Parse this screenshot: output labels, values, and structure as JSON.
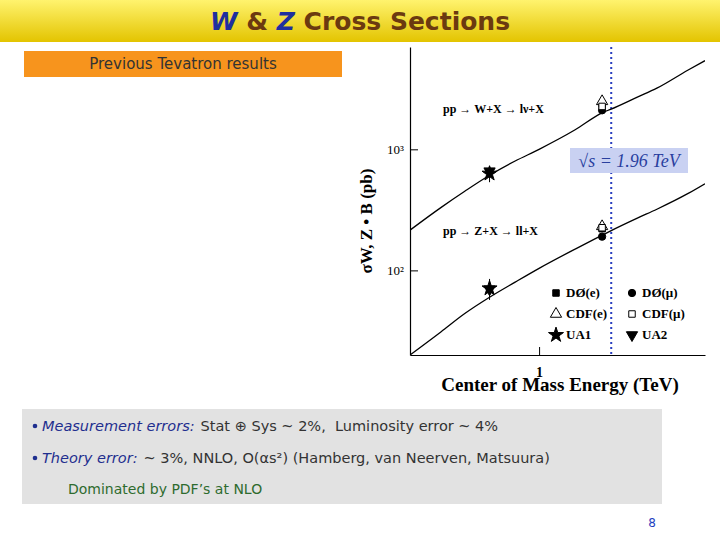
{
  "slide": {
    "title": [
      "W",
      " & ",
      "Z",
      " Cross Sections"
    ],
    "box": "Previous Tevatron results",
    "bullets": [
      {
        "label": "Measurement errors:",
        "text": "Stat ⊕ Sys ~ 2%,  Luminosity error ~ 4%"
      },
      {
        "label": "Theory error:",
        "text": "~ 3%, NNLO, O(αs²) (Hamberg, van Neerven, Matsuura)"
      }
    ],
    "note": "Dominated by PDF’s at NLO",
    "page": 8
  },
  "chart_data": {
    "type": "scatter",
    "xlabel": "Center of Mass Energy (TeV)",
    "ylabel": "σW, Z • B (pb)",
    "log": true,
    "grid": false,
    "legend": "lower right",
    "xlim": [
      0.3,
      4.7
    ],
    "ylim": [
      20,
      7000
    ],
    "xticks": [
      1
    ],
    "yticks": [
      {
        "value": 100,
        "label": "10²"
      },
      {
        "value": 1000,
        "label": "10³"
      }
    ],
    "annotations": [
      {
        "text": "√s = 1.96 TeV",
        "x": 1.96
      }
    ],
    "series": [
      {
        "name": "DØ(e)",
        "color": "#000000",
        "marker": "square",
        "x": [
          1.8,
          1.8
        ],
        "values": [
          2360,
          221
        ],
        "errors": [
          110,
          11
        ]
      },
      {
        "name": "DØ(μ)",
        "color": "#000000",
        "marker": "circle",
        "x": [
          1.8,
          1.8
        ],
        "values": [
          2100,
          190
        ],
        "errors": [
          100,
          10
        ]
      },
      {
        "name": "CDF(e)",
        "color": "#000000",
        "marker": "triangle-open",
        "x": [
          1.8,
          1.8
        ],
        "values": [
          2490,
          231
        ],
        "errors": [
          120,
          12
        ]
      },
      {
        "name": "CDF(μ)",
        "color": "#000000",
        "marker": "square-open",
        "x": [
          1.8,
          1.8
        ],
        "values": [
          2260,
          225
        ],
        "errors": [
          110,
          12
        ]
      },
      {
        "name": "UA1",
        "color": "#000000",
        "marker": "star",
        "x": [
          0.63,
          0.63
        ],
        "values": [
          630,
          71
        ],
        "errors": [
          95,
          14
        ]
      },
      {
        "name": "UA2",
        "color": "#000000",
        "marker": "triangle-down",
        "x": [
          0.63,
          0.63
        ],
        "values": [
          660,
          70
        ],
        "errors": [
          60,
          7
        ]
      },
      {
        "name": "pp → W+X → lν+X",
        "type": "line",
        "line_style": "solid",
        "color": "#000000",
        "x": [
          0.3,
          0.4,
          0.5,
          0.63,
          0.8,
          1,
          1.4,
          1.8,
          1.96,
          2.5,
          3,
          4,
          4.7
        ],
        "values": [
          215,
          330,
          450,
          610,
          800,
          1000,
          1450,
          2000,
          2150,
          2700,
          3200,
          4500,
          5400
        ]
      },
      {
        "name": "pp → Z+X → ll+X",
        "type": "line",
        "line_style": "solid",
        "color": "#000000",
        "x": [
          0.3,
          0.4,
          0.5,
          0.63,
          0.8,
          1,
          1.4,
          1.8,
          1.96,
          2.5,
          3,
          4,
          4.7
        ],
        "values": [
          20,
          31,
          44,
          60,
          80,
          104,
          150,
          195,
          213,
          270,
          320,
          430,
          520
        ]
      }
    ]
  }
}
